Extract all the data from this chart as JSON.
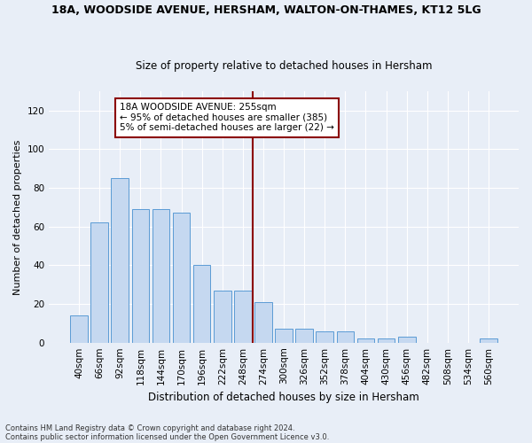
{
  "title": "18A, WOODSIDE AVENUE, HERSHAM, WALTON-ON-THAMES, KT12 5LG",
  "subtitle": "Size of property relative to detached houses in Hersham",
  "xlabel": "Distribution of detached houses by size in Hersham",
  "ylabel": "Number of detached properties",
  "bar_labels": [
    "40sqm",
    "66sqm",
    "92sqm",
    "118sqm",
    "144sqm",
    "170sqm",
    "196sqm",
    "222sqm",
    "248sqm",
    "274sqm",
    "300sqm",
    "326sqm",
    "352sqm",
    "378sqm",
    "404sqm",
    "430sqm",
    "456sqm",
    "482sqm",
    "508sqm",
    "534sqm",
    "560sqm"
  ],
  "bar_values": [
    14,
    62,
    85,
    69,
    69,
    67,
    40,
    27,
    27,
    21,
    7,
    7,
    6,
    6,
    2,
    2,
    3,
    0,
    0,
    0,
    2
  ],
  "bar_color": "#c5d8f0",
  "bar_edge_color": "#5b9bd5",
  "ylim": [
    0,
    130
  ],
  "yticks": [
    0,
    20,
    40,
    60,
    80,
    100,
    120
  ],
  "vline_x": 8.5,
  "vline_color": "#8b0000",
  "annotation_text": "18A WOODSIDE AVENUE: 255sqm\n← 95% of detached houses are smaller (385)\n5% of semi-detached houses are larger (22) →",
  "annotation_box_color": "#8b0000",
  "footer_line1": "Contains HM Land Registry data © Crown copyright and database right 2024.",
  "footer_line2": "Contains public sector information licensed under the Open Government Licence v3.0.",
  "bg_color": "#e8eef7",
  "plot_bg_color": "#e8eef7"
}
